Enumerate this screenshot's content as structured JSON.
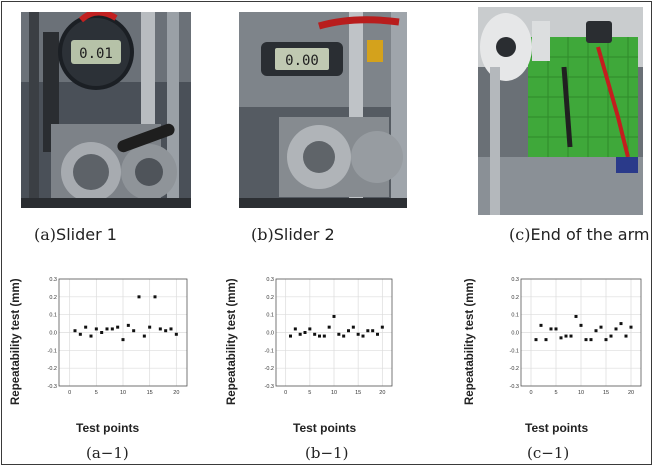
{
  "figure": {
    "panels": [
      {
        "tag": "(a)",
        "label": "Slider 1",
        "chart_tag": "(a−1)"
      },
      {
        "tag": "(b)",
        "label": "Slider 2",
        "chart_tag": "(b−1)"
      },
      {
        "tag": "(c)",
        "label": "End of the arm",
        "chart_tag": "(c−1)"
      }
    ],
    "gauge_readings": [
      "0.01",
      "0.00"
    ]
  },
  "chart_data": [
    {
      "type": "scatter",
      "xlabel": "Test points",
      "ylabel": "Repeatability test (mm)",
      "xlim": [
        -2,
        22
      ],
      "ylim": [
        -0.3,
        0.3
      ],
      "xticks": [
        0,
        5,
        10,
        15,
        20
      ],
      "yticks": [
        -0.3,
        -0.2,
        -0.1,
        0.0,
        0.1,
        0.2,
        0.3
      ],
      "ytick_labels": [
        "-0.3",
        "-0.2",
        "-0.1",
        "0.0",
        "0.1",
        "0.2",
        "0.3"
      ],
      "grid": true,
      "x": [
        1,
        2,
        3,
        4,
        5,
        6,
        7,
        8,
        9,
        10,
        11,
        12,
        13,
        14,
        15,
        16,
        17,
        18,
        19,
        20
      ],
      "y": [
        0.01,
        -0.01,
        0.03,
        -0.02,
        0.02,
        0.0,
        0.02,
        0.02,
        0.03,
        -0.04,
        0.04,
        0.01,
        0.2,
        -0.02,
        0.03,
        0.2,
        0.02,
        0.01,
        0.02,
        -0.01
      ]
    },
    {
      "type": "scatter",
      "xlabel": "Test points",
      "ylabel": "Repeatability test (mm)",
      "xlim": [
        -2,
        22
      ],
      "ylim": [
        -0.3,
        0.3
      ],
      "xticks": [
        0,
        5,
        10,
        15,
        20
      ],
      "yticks": [
        -0.3,
        -0.2,
        -0.1,
        0.0,
        0.1,
        0.2,
        0.3
      ],
      "ytick_labels": [
        "-0.3",
        "-0.2",
        "-0.1",
        "0.0",
        "0.1",
        "0.2",
        "0.3"
      ],
      "grid": true,
      "x": [
        1,
        2,
        3,
        4,
        5,
        6,
        7,
        8,
        9,
        10,
        11,
        12,
        13,
        14,
        15,
        16,
        17,
        18,
        19,
        20
      ],
      "y": [
        -0.02,
        0.02,
        -0.01,
        0.0,
        0.02,
        -0.01,
        -0.02,
        -0.02,
        0.03,
        0.09,
        -0.01,
        -0.02,
        0.01,
        0.03,
        -0.01,
        -0.02,
        0.01,
        0.01,
        -0.01,
        0.03
      ]
    },
    {
      "type": "scatter",
      "xlabel": "Test points",
      "ylabel": "Repeatability test (mm)",
      "xlim": [
        -2,
        22
      ],
      "ylim": [
        -0.3,
        0.3
      ],
      "xticks": [
        0,
        5,
        10,
        15,
        20
      ],
      "yticks": [
        -0.3,
        -0.2,
        -0.1,
        0.0,
        0.1,
        0.2,
        0.3
      ],
      "ytick_labels": [
        "-0.3",
        "-0.2",
        "-0.1",
        "0.0",
        "0.1",
        "0.2",
        "0.3"
      ],
      "grid": true,
      "x": [
        1,
        2,
        3,
        4,
        5,
        6,
        7,
        8,
        9,
        10,
        11,
        12,
        13,
        14,
        15,
        16,
        17,
        18,
        19,
        20
      ],
      "y": [
        -0.04,
        0.04,
        -0.04,
        0.02,
        0.02,
        -0.03,
        -0.02,
        -0.02,
        0.09,
        0.04,
        -0.04,
        -0.04,
        0.01,
        0.03,
        -0.04,
        -0.02,
        0.02,
        0.05,
        -0.02,
        0.03
      ]
    }
  ]
}
